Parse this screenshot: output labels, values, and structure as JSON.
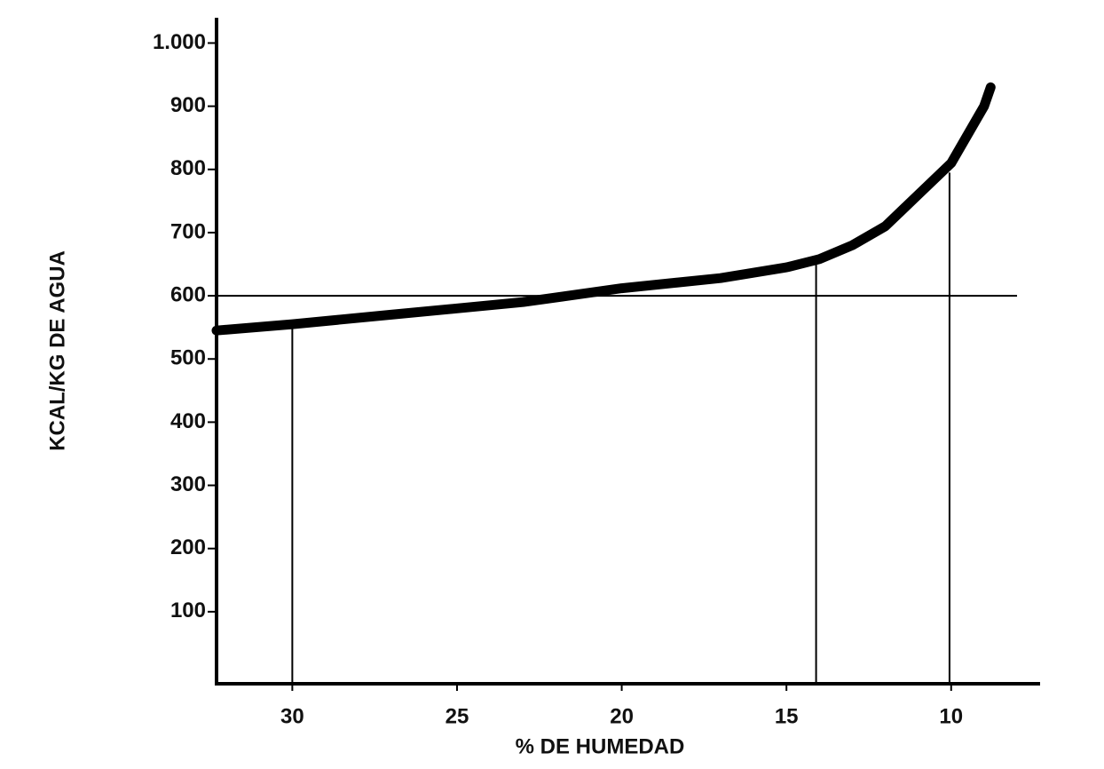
{
  "chart_data": {
    "type": "line",
    "xlabel": "% DE HUMEDAD",
    "ylabel": "KCAL/KG DE AGUA",
    "x": [
      32.3,
      30,
      27,
      25,
      23,
      20,
      17,
      15,
      14,
      13,
      12,
      11,
      10,
      9,
      8.8
    ],
    "series": [
      {
        "color": "#000000",
        "values": [
          545,
          555,
          570,
          580,
          590,
          612,
          628,
          645,
          658,
          680,
          710,
          760,
          810,
          900,
          930
        ]
      }
    ],
    "xlim": [
      32.3,
      7.3
    ],
    "ylim": [
      -14,
      1040
    ],
    "xticks": [
      30,
      25,
      20,
      15,
      10
    ],
    "yticks": [
      100,
      200,
      300,
      400,
      500,
      600,
      700,
      800,
      900,
      {
        "value": 1000,
        "label": "1.000"
      }
    ],
    "reference_lines": {
      "horizontal": {
        "y": 600,
        "x_end": 8
      },
      "vertical": [
        {
          "x": 30,
          "y_top": 555
        },
        {
          "x": 14.1,
          "y_top": 650
        },
        {
          "x": 10.05,
          "y_top": 795
        }
      ]
    }
  }
}
